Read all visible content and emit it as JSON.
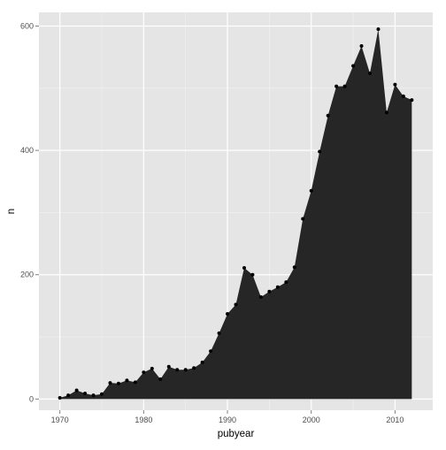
{
  "chart_data": {
    "type": "area",
    "title": "",
    "xlabel": "pubyear",
    "ylabel": "n",
    "xlim": [
      1967.5,
      2014.5
    ],
    "ylim": [
      -18,
      622
    ],
    "x_ticks": [
      1970,
      1980,
      1990,
      2000,
      2010
    ],
    "y_ticks": [
      0,
      200,
      400,
      600
    ],
    "x_tick_labels": [
      "1970",
      "1980",
      "1990",
      "2000",
      "2010"
    ],
    "y_tick_labels": [
      "0",
      "200",
      "400",
      "600"
    ],
    "grid": true,
    "legend": "none",
    "colors": {
      "panel_background": "#e5e5e5",
      "grid_major": "#ffffff",
      "grid_minor": "#f2f2f2",
      "area_fill": "#262626",
      "point": "#000000",
      "tick_label": "#4d4d4d"
    },
    "x": [
      1970,
      1971,
      1972,
      1973,
      1974,
      1975,
      1976,
      1977,
      1978,
      1979,
      1980,
      1981,
      1982,
      1983,
      1984,
      1985,
      1986,
      1987,
      1988,
      1989,
      1990,
      1991,
      1992,
      1993,
      1994,
      1995,
      1996,
      1997,
      1998,
      1999,
      2000,
      2001,
      2002,
      2003,
      2004,
      2005,
      2006,
      2007,
      2008,
      2009,
      2010,
      2011,
      2012
    ],
    "y": [
      2,
      6,
      14,
      9,
      6,
      8,
      26,
      25,
      30,
      27,
      43,
      49,
      32,
      52,
      47,
      47,
      50,
      59,
      77,
      106,
      137,
      152,
      211,
      200,
      164,
      173,
      180,
      188,
      212,
      290,
      335,
      398,
      456,
      503,
      503,
      536,
      568,
      524,
      595,
      461,
      506,
      487,
      481
    ]
  }
}
